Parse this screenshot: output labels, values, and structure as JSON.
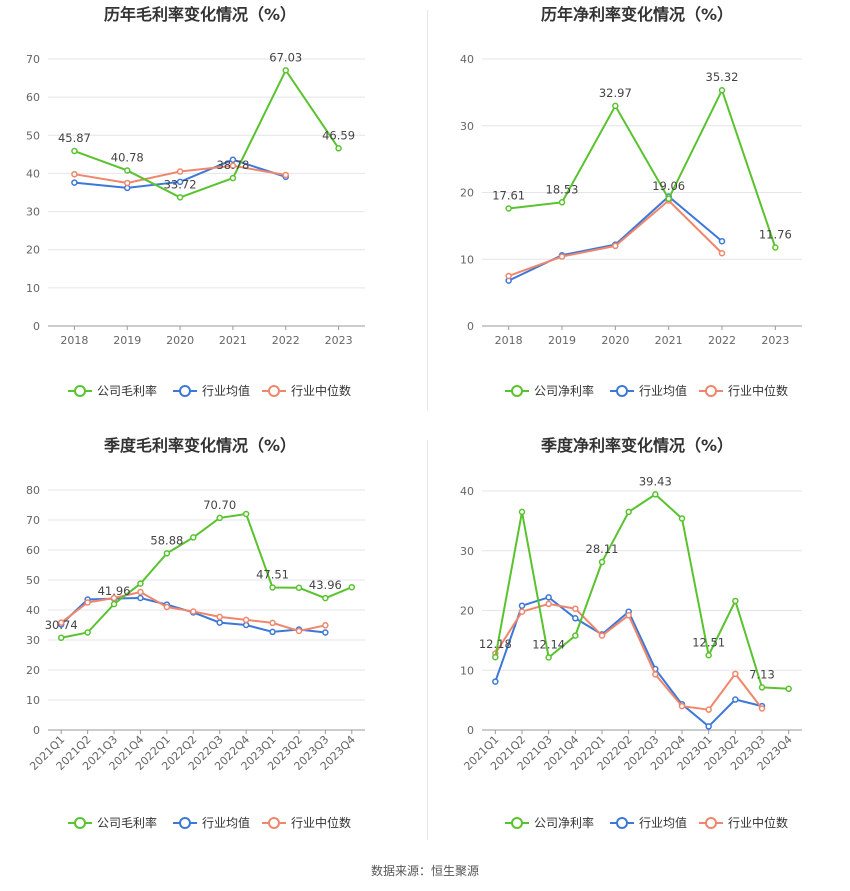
{
  "colors": {
    "company": "#59c32e",
    "industry_avg": "#3c78d8",
    "industry_median": "#f0866c",
    "grid": "#e4e4ee",
    "axis": "#666666",
    "title": "#333333"
  },
  "source": "数据来源：恒生聚源",
  "chart_data": [
    {
      "type": "line",
      "title": "历年毛利率变化情况（%）",
      "categories": [
        "2018",
        "2019",
        "2020",
        "2021",
        "2022",
        "2023"
      ],
      "ylim": [
        0,
        70
      ],
      "yticks": [
        0,
        10,
        20,
        30,
        40,
        50,
        60,
        70
      ],
      "series": [
        {
          "name": "公司毛利率",
          "key": "company",
          "values": [
            45.87,
            40.78,
            33.72,
            38.78,
            67.03,
            46.59
          ]
        },
        {
          "name": "行业均值",
          "key": "industry_avg",
          "values": [
            37.6,
            36.2,
            37.8,
            43.6,
            39.1,
            null
          ]
        },
        {
          "name": "行业中位数",
          "key": "industry_median",
          "values": [
            39.8,
            37.5,
            40.5,
            42.0,
            39.6,
            null
          ]
        }
      ],
      "labels": [
        {
          "i": 0,
          "text": "45.87"
        },
        {
          "i": 1,
          "text": "40.78"
        },
        {
          "i": 2,
          "text": "33.72"
        },
        {
          "i": 3,
          "text": "38.78"
        },
        {
          "i": 4,
          "text": "67.03"
        },
        {
          "i": 5,
          "text": "46.59"
        }
      ],
      "xlabel_rotate": false
    },
    {
      "type": "line",
      "title": "历年净利率变化情况（%）",
      "categories": [
        "2018",
        "2019",
        "2020",
        "2021",
        "2022",
        "2023"
      ],
      "ylim": [
        0,
        40
      ],
      "yticks": [
        0,
        10,
        20,
        30,
        40
      ],
      "series": [
        {
          "name": "公司净利率",
          "key": "company",
          "values": [
            17.61,
            18.53,
            32.97,
            19.06,
            35.32,
            11.76
          ]
        },
        {
          "name": "行业均值",
          "key": "industry_avg",
          "values": [
            6.8,
            10.6,
            12.2,
            19.4,
            12.7,
            null
          ]
        },
        {
          "name": "行业中位数",
          "key": "industry_median",
          "values": [
            7.5,
            10.4,
            12.0,
            18.8,
            10.9,
            null
          ]
        }
      ],
      "labels": [
        {
          "i": 0,
          "text": "17.61"
        },
        {
          "i": 1,
          "text": "18.53"
        },
        {
          "i": 2,
          "text": "32.97"
        },
        {
          "i": 3,
          "text": "19.06"
        },
        {
          "i": 4,
          "text": "35.32"
        },
        {
          "i": 5,
          "text": "11.76"
        }
      ],
      "xlabel_rotate": false
    },
    {
      "type": "line",
      "title": "季度毛利率变化情况（%）",
      "categories": [
        "2021Q1",
        "2021Q2",
        "2021Q3",
        "2021Q4",
        "2022Q1",
        "2022Q2",
        "2022Q3",
        "2022Q4",
        "2023Q1",
        "2023Q2",
        "2023Q3",
        "2023Q4"
      ],
      "ylim": [
        0,
        80
      ],
      "yticks": [
        0,
        10,
        20,
        30,
        40,
        50,
        60,
        70,
        80
      ],
      "series": [
        {
          "name": "公司毛利率",
          "key": "company",
          "values": [
            30.74,
            32.5,
            41.96,
            48.8,
            58.88,
            64.2,
            70.7,
            72.0,
            47.51,
            47.4,
            43.96,
            47.6
          ]
        },
        {
          "name": "行业均值",
          "key": "industry_avg",
          "values": [
            35.2,
            43.5,
            43.8,
            44.0,
            41.8,
            39.2,
            35.8,
            35.0,
            32.7,
            33.5,
            32.5,
            null
          ]
        },
        {
          "name": "行业中位数",
          "key": "industry_median",
          "values": [
            35.8,
            42.5,
            44.0,
            46.0,
            41.0,
            39.5,
            37.7,
            36.7,
            35.7,
            33.0,
            34.9,
            null
          ]
        }
      ],
      "labels": [
        {
          "i": 0,
          "text": "30.74"
        },
        {
          "i": 2,
          "text": "41.96"
        },
        {
          "i": 4,
          "text": "58.88"
        },
        {
          "i": 6,
          "text": "70.70"
        },
        {
          "i": 8,
          "text": "47.51"
        },
        {
          "i": 10,
          "text": "43.96"
        }
      ],
      "xlabel_rotate": true
    },
    {
      "type": "line",
      "title": "季度净利率变化情况（%）",
      "categories": [
        "2021Q1",
        "2021Q2",
        "2021Q3",
        "2021Q4",
        "2022Q1",
        "2022Q2",
        "2022Q3",
        "2022Q4",
        "2023Q1",
        "2023Q2",
        "2023Q3",
        "2023Q4"
      ],
      "ylim": [
        0,
        40
      ],
      "yticks": [
        0,
        10,
        20,
        30,
        40
      ],
      "series": [
        {
          "name": "公司净利率",
          "key": "company",
          "values": [
            12.18,
            36.5,
            12.14,
            15.8,
            28.11,
            36.5,
            39.43,
            35.4,
            12.51,
            21.6,
            7.13,
            6.9
          ]
        },
        {
          "name": "行业均值",
          "key": "industry_avg",
          "values": [
            8.1,
            20.8,
            22.2,
            18.7,
            16.0,
            19.8,
            10.2,
            4.3,
            0.6,
            5.1,
            4.0,
            null
          ]
        },
        {
          "name": "行业中位数",
          "key": "industry_median",
          "values": [
            12.8,
            19.8,
            21.1,
            20.3,
            15.8,
            19.2,
            9.3,
            4.0,
            3.4,
            9.4,
            3.6,
            null
          ]
        }
      ],
      "labels": [
        {
          "i": 0,
          "text": "12.18"
        },
        {
          "i": 2,
          "text": "12.14"
        },
        {
          "i": 4,
          "text": "28.11"
        },
        {
          "i": 6,
          "text": "39.43"
        },
        {
          "i": 8,
          "text": "12.51"
        },
        {
          "i": 10,
          "text": "7.13"
        }
      ],
      "xlabel_rotate": true
    }
  ]
}
